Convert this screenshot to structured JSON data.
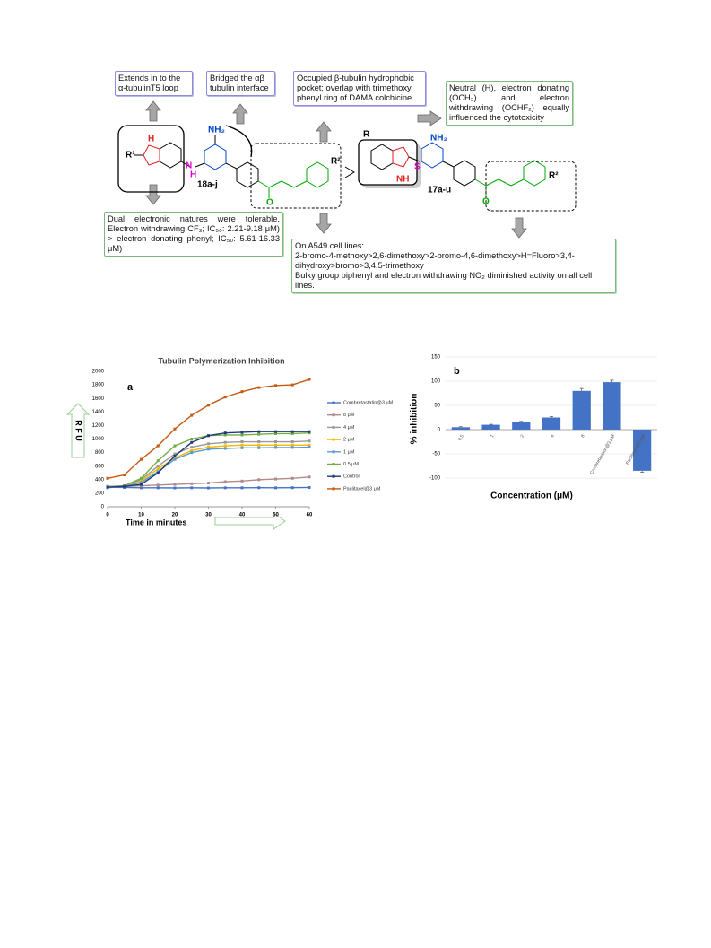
{
  "scheme": {
    "boxes": [
      "Extends in to the α-tubulinT5 loop",
      "Bridged the αβ tubulin interface",
      "Occupied β-tubulin hydrophobic pocket; overlap with trimethoxy phenyl ring of DAMA colchicine",
      "Neutral (H), electron donating (OCH₃) and electron withdrawing (OCHF₂) equally influenced the cytotoxicity",
      "Dual electronic natures were tolerable. Electron withdrawing CF₃; IC₅₀: 2.21-9.18 μM) > electron donating phenyl; IC₅₀: 5.61-16.33 μM)"
    ],
    "sar_box": [
      "On A549 cell lines:",
      "2-bromo-4-methoxy>2,6-dimethoxy>2-bromo-4,6-dimethoxy>H=Fluoro>3,4-dihydroxy>bromo>3,4,5-trimethoxy",
      "Bulky group biphenyl and  electron withdrawing NO₂ diminished activity on all cell lines."
    ],
    "compounds": [
      "18a-j",
      "17a-u"
    ],
    "atoms": {
      "r1": "R¹",
      "h": "H",
      "n": "N",
      "nh": "NH",
      "nh2": "NH₂",
      "o": "O",
      "r2": "R²",
      "r": "R",
      "s": "S"
    }
  },
  "chart_data": [
    {
      "type": "line",
      "title": "Tubulin Polymerization Inhibition",
      "panel": "a",
      "x_label": "Time in minutes",
      "y_label": "R F U",
      "x": [
        0,
        5,
        10,
        15,
        20,
        25,
        30,
        35,
        40,
        45,
        50,
        55,
        60
      ],
      "xlim": [
        0,
        60
      ],
      "xticks": [
        0,
        10,
        20,
        30,
        40,
        50,
        60
      ],
      "ylim": [
        0,
        2000
      ],
      "yticks": [
        0,
        200,
        400,
        600,
        800,
        1000,
        1200,
        1400,
        1600,
        1800,
        2000
      ],
      "series": [
        {
          "name": "Combretastatin@3 μM",
          "color": "#4472c4",
          "values": [
            290,
            285,
            280,
            280,
            278,
            280,
            278,
            280,
            280,
            282,
            280,
            282,
            285
          ]
        },
        {
          "name": "8 μM",
          "color": "#b08a8a",
          "values": [
            300,
            300,
            310,
            320,
            330,
            340,
            350,
            370,
            380,
            400,
            410,
            420,
            440
          ]
        },
        {
          "name": "4 μM",
          "color": "#9a9a9a",
          "values": [
            300,
            310,
            400,
            600,
            780,
            880,
            930,
            950,
            960,
            960,
            960,
            960,
            970
          ]
        },
        {
          "name": "2 μM",
          "color": "#f5b800",
          "values": [
            290,
            300,
            380,
            560,
            720,
            830,
            880,
            900,
            910,
            910,
            910,
            910,
            910
          ]
        },
        {
          "name": "1 μM",
          "color": "#5b9bd5",
          "values": [
            280,
            300,
            360,
            520,
            700,
            800,
            850,
            860,
            870,
            870,
            875,
            875,
            880
          ]
        },
        {
          "name": "0.5 μM",
          "color": "#70ad47",
          "values": [
            290,
            310,
            420,
            680,
            900,
            1000,
            1050,
            1060,
            1060,
            1070,
            1080,
            1080,
            1090
          ]
        },
        {
          "name": "Control",
          "color": "#1f3a7a",
          "values": [
            290,
            300,
            330,
            500,
            750,
            950,
            1050,
            1090,
            1100,
            1110,
            1110,
            1110,
            1110
          ]
        },
        {
          "name": "Paclitaxel@3 μM",
          "color": "#c55a11",
          "values": [
            420,
            470,
            700,
            900,
            1150,
            1350,
            1500,
            1620,
            1700,
            1760,
            1790,
            1800,
            1880
          ]
        }
      ]
    },
    {
      "type": "bar",
      "panel": "b",
      "x_label": "Concentration (μM)",
      "y_label": "% inhibition",
      "categories": [
        "0.5",
        "1",
        "2",
        "4",
        "8",
        "Combretastatin@3 μM",
        "Paclitaxel@3 μM"
      ],
      "values": [
        5,
        10,
        15,
        25,
        80,
        98,
        -85
      ],
      "errors": [
        1,
        1,
        2,
        2,
        5,
        4,
        3
      ],
      "color": "#4472c4",
      "ylim": [
        -100,
        150
      ],
      "yticks": [
        -100,
        -50,
        0,
        50,
        100,
        150
      ],
      "grid": true
    }
  ]
}
